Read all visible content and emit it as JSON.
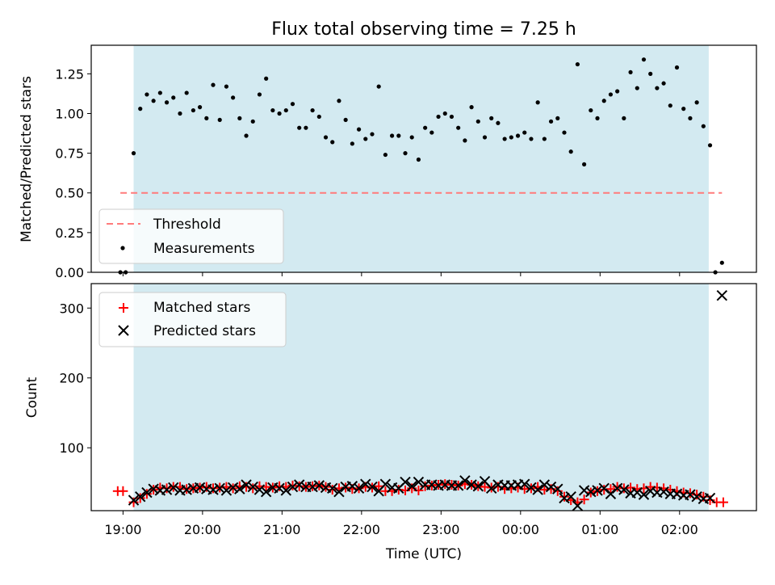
{
  "title": "Flux total observing time = 7.25 h",
  "colors": {
    "night_span": "#d3eaf1",
    "threshold": "#ff7b7b",
    "measurements": "#000000",
    "matched": "#ff0000",
    "predicted": "#000000"
  },
  "chart_data": [
    {
      "type": "scatter",
      "name": "ratio-panel",
      "ylabel": "Matched/Predicted stars",
      "xlabel": "",
      "xlim": [
        "18:36",
        "02:58"
      ],
      "ylim": [
        0,
        1.43
      ],
      "y_ticks": [
        0.0,
        0.25,
        0.5,
        0.75,
        1.0,
        1.25
      ],
      "y_tick_labels": [
        "0.00",
        "0.25",
        "0.50",
        "0.75",
        "1.00",
        "1.25"
      ],
      "x_tick_times": [
        "19:00",
        "20:00",
        "21:00",
        "22:00",
        "23:00",
        "00:00",
        "01:00",
        "02:00"
      ],
      "x_tick_labels_shown": false,
      "shaded_span": [
        "19:08",
        "02:22"
      ],
      "legend": {
        "position": "lower-left",
        "threshold_label": "Threshold",
        "measurements_label": "Measurements"
      },
      "threshold": {
        "value": 0.5,
        "x_range": [
          "18:58",
          "02:32"
        ]
      },
      "points": [
        [
          "18:58",
          0.0
        ],
        [
          "19:02",
          0.0
        ],
        [
          "19:08",
          0.75
        ],
        [
          "19:13",
          1.03
        ],
        [
          "19:18",
          1.12
        ],
        [
          "19:23",
          1.08
        ],
        [
          "19:28",
          1.13
        ],
        [
          "19:33",
          1.07
        ],
        [
          "19:38",
          1.1
        ],
        [
          "19:43",
          1.0
        ],
        [
          "19:48",
          1.13
        ],
        [
          "19:53",
          1.02
        ],
        [
          "19:58",
          1.04
        ],
        [
          "20:03",
          0.97
        ],
        [
          "20:08",
          1.18
        ],
        [
          "20:13",
          0.96
        ],
        [
          "20:18",
          1.17
        ],
        [
          "20:23",
          1.1
        ],
        [
          "20:28",
          0.97
        ],
        [
          "20:33",
          0.86
        ],
        [
          "20:38",
          0.95
        ],
        [
          "20:43",
          1.12
        ],
        [
          "20:48",
          1.22
        ],
        [
          "20:53",
          1.02
        ],
        [
          "20:58",
          1.0
        ],
        [
          "21:03",
          1.02
        ],
        [
          "21:08",
          1.06
        ],
        [
          "21:13",
          0.91
        ],
        [
          "21:18",
          0.91
        ],
        [
          "21:23",
          1.02
        ],
        [
          "21:28",
          0.98
        ],
        [
          "21:33",
          0.85
        ],
        [
          "21:38",
          0.82
        ],
        [
          "21:43",
          1.08
        ],
        [
          "21:48",
          0.96
        ],
        [
          "21:53",
          0.81
        ],
        [
          "21:58",
          0.9
        ],
        [
          "22:03",
          0.84
        ],
        [
          "22:08",
          0.87
        ],
        [
          "22:13",
          1.17
        ],
        [
          "22:18",
          0.74
        ],
        [
          "22:23",
          0.86
        ],
        [
          "22:28",
          0.86
        ],
        [
          "22:33",
          0.75
        ],
        [
          "22:38",
          0.85
        ],
        [
          "22:43",
          0.71
        ],
        [
          "22:48",
          0.91
        ],
        [
          "22:53",
          0.88
        ],
        [
          "22:58",
          0.98
        ],
        [
          "23:03",
          1.0
        ],
        [
          "23:08",
          0.98
        ],
        [
          "23:13",
          0.91
        ],
        [
          "23:18",
          0.83
        ],
        [
          "23:23",
          1.04
        ],
        [
          "23:28",
          0.95
        ],
        [
          "23:33",
          0.85
        ],
        [
          "23:38",
          0.97
        ],
        [
          "23:43",
          0.94
        ],
        [
          "23:48",
          0.84
        ],
        [
          "23:53",
          0.85
        ],
        [
          "23:58",
          0.86
        ],
        [
          "00:03",
          0.88
        ],
        [
          "00:08",
          0.84
        ],
        [
          "00:13",
          1.07
        ],
        [
          "00:18",
          0.84
        ],
        [
          "00:23",
          0.95
        ],
        [
          "00:28",
          0.97
        ],
        [
          "00:33",
          0.88
        ],
        [
          "00:38",
          0.76
        ],
        [
          "00:43",
          1.31
        ],
        [
          "00:48",
          0.68
        ],
        [
          "00:53",
          1.02
        ],
        [
          "00:58",
          0.97
        ],
        [
          "01:03",
          1.08
        ],
        [
          "01:08",
          1.12
        ],
        [
          "01:13",
          1.14
        ],
        [
          "01:18",
          0.97
        ],
        [
          "01:23",
          1.26
        ],
        [
          "01:28",
          1.16
        ],
        [
          "01:33",
          1.34
        ],
        [
          "01:38",
          1.25
        ],
        [
          "01:43",
          1.16
        ],
        [
          "01:48",
          1.19
        ],
        [
          "01:53",
          1.05
        ],
        [
          "01:58",
          1.29
        ],
        [
          "02:03",
          1.03
        ],
        [
          "02:08",
          0.97
        ],
        [
          "02:13",
          1.07
        ],
        [
          "02:18",
          0.92
        ],
        [
          "02:23",
          0.8
        ],
        [
          "02:27",
          0.0
        ],
        [
          "02:32",
          0.06
        ]
      ]
    },
    {
      "type": "scatter",
      "name": "count-panel",
      "ylabel": "Count",
      "xlabel": "Time (UTC)",
      "xlim": [
        "18:36",
        "02:58"
      ],
      "ylim": [
        10,
        335
      ],
      "y_ticks": [
        100,
        200,
        300
      ],
      "y_tick_labels": [
        "100",
        "200",
        "300"
      ],
      "x_tick_times": [
        "19:00",
        "20:00",
        "21:00",
        "22:00",
        "23:00",
        "00:00",
        "01:00",
        "02:00"
      ],
      "x_tick_labels": [
        "19:00",
        "20:00",
        "21:00",
        "22:00",
        "23:00",
        "00:00",
        "01:00",
        "02:00"
      ],
      "shaded_span": [
        "19:08",
        "02:22"
      ],
      "legend": {
        "position": "upper-left",
        "matched_label": "Matched stars",
        "predicted_label": "Predicted stars"
      },
      "matched": [
        [
          "18:56",
          38
        ],
        [
          "19:00",
          38
        ],
        [
          "19:08",
          22
        ],
        [
          "19:13",
          28
        ],
        [
          "19:18",
          34
        ],
        [
          "19:23",
          40
        ],
        [
          "19:28",
          43
        ],
        [
          "19:33",
          42
        ],
        [
          "19:38",
          44
        ],
        [
          "19:43",
          44
        ],
        [
          "19:48",
          41
        ],
        [
          "19:53",
          42
        ],
        [
          "19:58",
          43
        ],
        [
          "20:03",
          44
        ],
        [
          "20:08",
          42
        ],
        [
          "20:13",
          43
        ],
        [
          "20:18",
          44
        ],
        [
          "20:23",
          42
        ],
        [
          "20:28",
          45
        ],
        [
          "20:33",
          44
        ],
        [
          "20:38",
          42
        ],
        [
          "20:43",
          45
        ],
        [
          "20:48",
          44
        ],
        [
          "20:53",
          43
        ],
        [
          "20:58",
          45
        ],
        [
          "21:03",
          44
        ],
        [
          "21:08",
          46
        ],
        [
          "21:13",
          45
        ],
        [
          "21:18",
          44
        ],
        [
          "21:23",
          45
        ],
        [
          "21:28",
          46
        ],
        [
          "21:33",
          44
        ],
        [
          "21:38",
          40
        ],
        [
          "21:43",
          42
        ],
        [
          "21:48",
          43
        ],
        [
          "21:53",
          41
        ],
        [
          "21:58",
          42
        ],
        [
          "22:03",
          44
        ],
        [
          "22:08",
          43
        ],
        [
          "22:13",
          45
        ],
        [
          "22:18",
          38
        ],
        [
          "22:23",
          38
        ],
        [
          "22:28",
          40
        ],
        [
          "22:33",
          39
        ],
        [
          "22:38",
          42
        ],
        [
          "22:43",
          39
        ],
        [
          "22:48",
          45
        ],
        [
          "22:53",
          46
        ],
        [
          "22:58",
          47
        ],
        [
          "23:03",
          48
        ],
        [
          "23:08",
          47
        ],
        [
          "23:13",
          46
        ],
        [
          "23:18",
          48
        ],
        [
          "23:23",
          47
        ],
        [
          "23:28",
          45
        ],
        [
          "23:33",
          44
        ],
        [
          "23:38",
          43
        ],
        [
          "23:43",
          44
        ],
        [
          "23:48",
          41
        ],
        [
          "23:53",
          42
        ],
        [
          "23:58",
          43
        ],
        [
          "00:03",
          41
        ],
        [
          "00:08",
          42
        ],
        [
          "00:13",
          44
        ],
        [
          "00:18",
          40
        ],
        [
          "00:23",
          41
        ],
        [
          "00:28",
          38
        ],
        [
          "00:33",
          30
        ],
        [
          "00:38",
          25
        ],
        [
          "00:43",
          22
        ],
        [
          "00:48",
          26
        ],
        [
          "00:53",
          36
        ],
        [
          "00:58",
          38
        ],
        [
          "01:03",
          40
        ],
        [
          "01:08",
          41
        ],
        [
          "01:13",
          44
        ],
        [
          "01:18",
          42
        ],
        [
          "01:23",
          43
        ],
        [
          "01:28",
          41
        ],
        [
          "01:33",
          42
        ],
        [
          "01:38",
          44
        ],
        [
          "01:43",
          43
        ],
        [
          "01:48",
          42
        ],
        [
          "01:53",
          40
        ],
        [
          "01:58",
          38
        ],
        [
          "02:03",
          36
        ],
        [
          "02:08",
          35
        ],
        [
          "02:13",
          33
        ],
        [
          "02:18",
          30
        ],
        [
          "02:23",
          25
        ],
        [
          "02:28",
          22
        ],
        [
          "02:33",
          22
        ]
      ],
      "predicted": [
        [
          "19:08",
          25
        ],
        [
          "19:13",
          30
        ],
        [
          "19:18",
          36
        ],
        [
          "19:23",
          41
        ],
        [
          "19:28",
          39
        ],
        [
          "19:33",
          40
        ],
        [
          "19:38",
          43
        ],
        [
          "19:43",
          39
        ],
        [
          "19:48",
          40
        ],
        [
          "19:53",
          42
        ],
        [
          "19:58",
          43
        ],
        [
          "20:03",
          41
        ],
        [
          "20:08",
          40
        ],
        [
          "20:13",
          42
        ],
        [
          "20:18",
          39
        ],
        [
          "20:23",
          43
        ],
        [
          "20:28",
          41
        ],
        [
          "20:33",
          47
        ],
        [
          "20:38",
          44
        ],
        [
          "20:43",
          40
        ],
        [
          "20:48",
          37
        ],
        [
          "20:53",
          43
        ],
        [
          "20:58",
          42
        ],
        [
          "21:03",
          39
        ],
        [
          "21:08",
          44
        ],
        [
          "21:13",
          47
        ],
        [
          "21:18",
          44
        ],
        [
          "21:23",
          44
        ],
        [
          "21:28",
          46
        ],
        [
          "21:33",
          43
        ],
        [
          "21:38",
          42
        ],
        [
          "21:43",
          37
        ],
        [
          "21:48",
          44
        ],
        [
          "21:53",
          45
        ],
        [
          "21:58",
          42
        ],
        [
          "22:03",
          48
        ],
        [
          "22:08",
          44
        ],
        [
          "22:13",
          38
        ],
        [
          "22:18",
          48
        ],
        [
          "22:23",
          43
        ],
        [
          "22:28",
          42
        ],
        [
          "22:33",
          51
        ],
        [
          "22:38",
          45
        ],
        [
          "22:43",
          51
        ],
        [
          "22:48",
          47
        ],
        [
          "22:53",
          47
        ],
        [
          "22:58",
          46
        ],
        [
          "23:03",
          47
        ],
        [
          "23:08",
          46
        ],
        [
          "23:13",
          46
        ],
        [
          "23:18",
          53
        ],
        [
          "23:23",
          47
        ],
        [
          "23:28",
          45
        ],
        [
          "23:33",
          52
        ],
        [
          "23:38",
          42
        ],
        [
          "23:43",
          47
        ],
        [
          "23:48",
          46
        ],
        [
          "23:53",
          46
        ],
        [
          "23:58",
          47
        ],
        [
          "00:03",
          48
        ],
        [
          "00:08",
          43
        ],
        [
          "00:13",
          40
        ],
        [
          "00:18",
          47
        ],
        [
          "00:23",
          44
        ],
        [
          "00:28",
          41
        ],
        [
          "00:33",
          28
        ],
        [
          "00:38",
          30
        ],
        [
          "00:43",
          17
        ],
        [
          "00:48",
          39
        ],
        [
          "00:53",
          37
        ],
        [
          "00:58",
          39
        ],
        [
          "01:03",
          42
        ],
        [
          "01:08",
          34
        ],
        [
          "01:13",
          42
        ],
        [
          "01:18",
          40
        ],
        [
          "01:23",
          35
        ],
        [
          "01:28",
          36
        ],
        [
          "01:33",
          33
        ],
        [
          "01:38",
          38
        ],
        [
          "01:43",
          36
        ],
        [
          "01:48",
          37
        ],
        [
          "01:53",
          34
        ],
        [
          "01:58",
          34
        ],
        [
          "02:03",
          32
        ],
        [
          "02:08",
          33
        ],
        [
          "02:13",
          30
        ],
        [
          "02:18",
          27
        ],
        [
          "02:23",
          28
        ],
        [
          "02:32",
          318
        ]
      ]
    }
  ]
}
